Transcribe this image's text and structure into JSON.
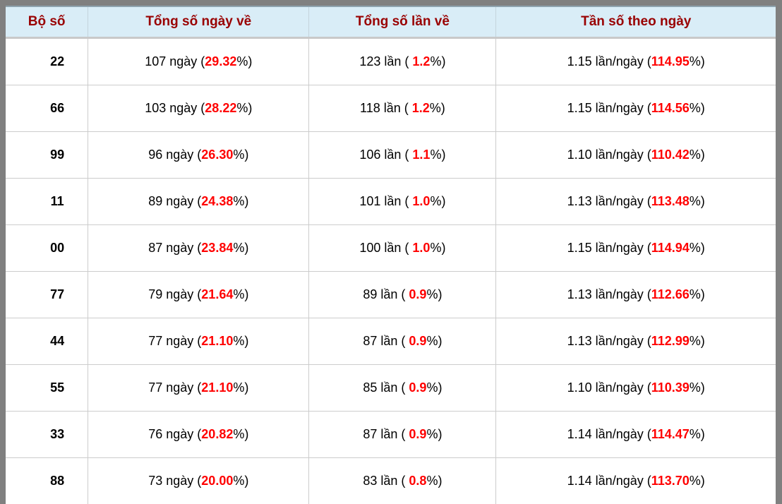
{
  "colors": {
    "frame": "#808080",
    "header_background": "#d9edf7",
    "header_text": "#990000",
    "cell_border": "#cccccc",
    "highlight_percent": "#ff0000",
    "body_text": "#000000"
  },
  "table": {
    "percent_suffix": "%)",
    "columns": [
      {
        "label": "Bộ số"
      },
      {
        "label": "Tổng số ngày về"
      },
      {
        "label": "Tổng số lần về"
      },
      {
        "label": "Tần số theo ngày"
      }
    ],
    "rows": [
      {
        "pair": "22",
        "days_prefix": "107 ngày (",
        "days_pct": "29.32",
        "times_prefix": "123 lần ( ",
        "times_pct": "1.2",
        "freq_prefix": "1.15 lần/ngày (",
        "freq_pct": "114.95"
      },
      {
        "pair": "66",
        "days_prefix": "103 ngày (",
        "days_pct": "28.22",
        "times_prefix": "118 lần ( ",
        "times_pct": "1.2",
        "freq_prefix": "1.15 lần/ngày (",
        "freq_pct": "114.56"
      },
      {
        "pair": "99",
        "days_prefix": "96 ngày (",
        "days_pct": "26.30",
        "times_prefix": "106 lần ( ",
        "times_pct": "1.1",
        "freq_prefix": "1.10 lần/ngày (",
        "freq_pct": "110.42"
      },
      {
        "pair": "11",
        "days_prefix": "89 ngày (",
        "days_pct": "24.38",
        "times_prefix": "101 lần ( ",
        "times_pct": "1.0",
        "freq_prefix": "1.13 lần/ngày (",
        "freq_pct": "113.48"
      },
      {
        "pair": "00",
        "days_prefix": "87 ngày (",
        "days_pct": "23.84",
        "times_prefix": "100 lần ( ",
        "times_pct": "1.0",
        "freq_prefix": "1.15 lần/ngày (",
        "freq_pct": "114.94"
      },
      {
        "pair": "77",
        "days_prefix": "79 ngày (",
        "days_pct": "21.64",
        "times_prefix": "89 lần ( ",
        "times_pct": "0.9",
        "freq_prefix": "1.13 lần/ngày (",
        "freq_pct": "112.66"
      },
      {
        "pair": "44",
        "days_prefix": "77 ngày (",
        "days_pct": "21.10",
        "times_prefix": "87 lần ( ",
        "times_pct": "0.9",
        "freq_prefix": "1.13 lần/ngày (",
        "freq_pct": "112.99"
      },
      {
        "pair": "55",
        "days_prefix": "77 ngày (",
        "days_pct": "21.10",
        "times_prefix": "85 lần ( ",
        "times_pct": "0.9",
        "freq_prefix": "1.10 lần/ngày (",
        "freq_pct": "110.39"
      },
      {
        "pair": "33",
        "days_prefix": "76 ngày (",
        "days_pct": "20.82",
        "times_prefix": "87 lần ( ",
        "times_pct": "0.9",
        "freq_prefix": "1.14 lần/ngày (",
        "freq_pct": "114.47"
      },
      {
        "pair": "88",
        "days_prefix": "73 ngày (",
        "days_pct": "20.00",
        "times_prefix": "83 lần ( ",
        "times_pct": "0.8",
        "freq_prefix": "1.14 lần/ngày (",
        "freq_pct": "113.70"
      }
    ]
  }
}
